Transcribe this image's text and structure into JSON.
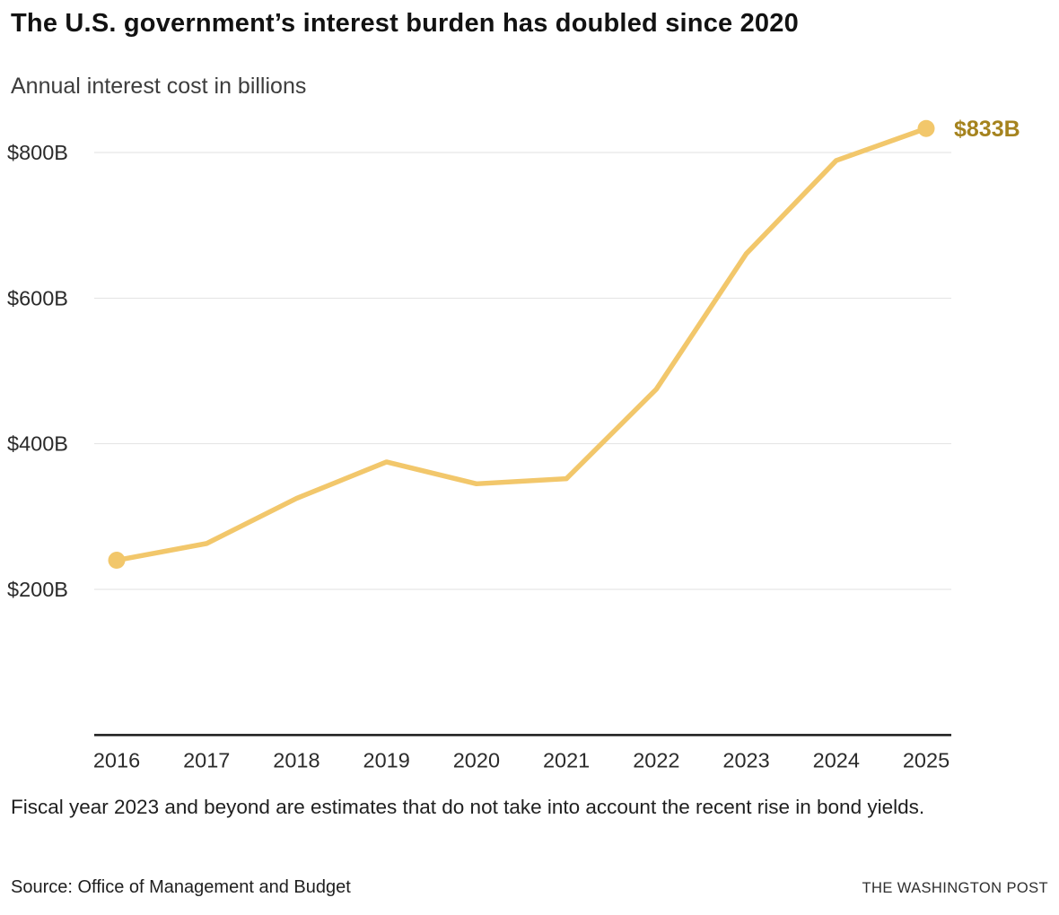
{
  "header": {
    "title": "The U.S. government’s interest burden has doubled since 2020",
    "subtitle": "Annual interest cost in billions"
  },
  "chart_data": {
    "type": "line",
    "title": "The U.S. government’s interest burden has doubled since 2020",
    "subtitle": "Annual interest cost in billions",
    "x": [
      2016,
      2017,
      2018,
      2019,
      2020,
      2021,
      2022,
      2023,
      2024,
      2025
    ],
    "values": [
      240,
      263,
      325,
      375,
      345,
      352,
      475,
      661,
      789,
      833
    ],
    "xlabel": "",
    "ylabel": "",
    "ylim": [
      0,
      860
    ],
    "y_ticks": [
      200,
      400,
      600,
      800
    ],
    "y_tick_labels": [
      "$200B",
      "$400B",
      "$600B",
      "$800B"
    ],
    "grid": true,
    "legend_position": "none",
    "markers": "first-and-last",
    "end_label": "$833B",
    "line_color": "#F2C76B",
    "end_label_color": "#A5831E",
    "gridline_color": "#E2E2E2",
    "axis_color": "#1A1A1A",
    "tick_label_color": "#2B2B2B"
  },
  "footnote": "Fiscal year 2023 and beyond are estimates that do not take into account the recent rise in bond yields.",
  "source": "Source: Office of Management and Budget",
  "attribution": "THE WASHINGTON POST"
}
